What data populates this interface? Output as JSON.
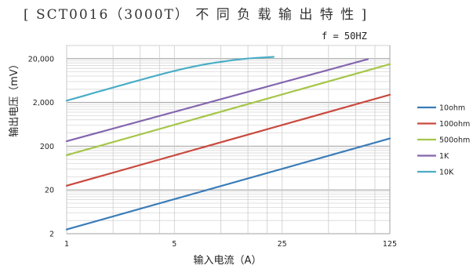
{
  "chart_data": {
    "type": "line",
    "title": "[ SCT0016（3000T） 不 同 负 载 输 出 特 性 ]",
    "annotation": "f = 50HZ",
    "xlabel": "输入电流（A）",
    "ylabel": "输出电压（mV）",
    "x_scale": "log",
    "y_scale": "log",
    "xlim": [
      1,
      125
    ],
    "ylim": [
      2,
      40000
    ],
    "x_ticks": [
      1,
      5,
      25,
      125
    ],
    "x_tick_labels": [
      "1",
      "5",
      "25",
      "125"
    ],
    "y_ticks": [
      2,
      20,
      200,
      2000,
      20000
    ],
    "y_tick_labels": [
      "2",
      "20",
      "200",
      "2,000",
      "20,000"
    ],
    "grid": true,
    "legend_position": "right",
    "series": [
      {
        "name": "10ohm",
        "color": "#3a7cb8",
        "x": [
          1,
          125
        ],
        "y": [
          2.5,
          300
        ]
      },
      {
        "name": "100ohm",
        "color": "#c94a3f",
        "x": [
          1,
          125
        ],
        "y": [
          25,
          3000
        ]
      },
      {
        "name": "500ohm",
        "color": "#a6c649",
        "x": [
          1,
          125
        ],
        "y": [
          125,
          15000
        ]
      },
      {
        "name": "1K",
        "color": "#8466ae",
        "x": [
          1,
          90
        ],
        "y": [
          260,
          19500
        ]
      },
      {
        "name": "10K",
        "color": "#4aadc6",
        "x": [
          1,
          5,
          12,
          22
        ],
        "y": [
          2200,
          10500,
          18500,
          22000
        ]
      }
    ]
  }
}
